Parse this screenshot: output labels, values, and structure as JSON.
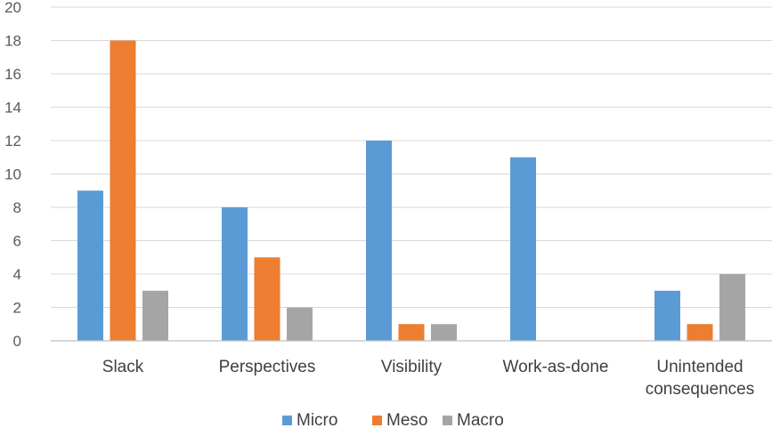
{
  "chart_data": {
    "type": "bar",
    "categories": [
      [
        "Slack"
      ],
      [
        "Perspectives"
      ],
      [
        "Visibility"
      ],
      [
        "Work-as-done"
      ],
      [
        "Unintended",
        "consequences"
      ]
    ],
    "series": [
      {
        "name": "Micro",
        "color": "#5b9bd5",
        "values": [
          9,
          8,
          12,
          11,
          3
        ]
      },
      {
        "name": "Meso",
        "color": "#ed7d31",
        "values": [
          18,
          5,
          1,
          0,
          1
        ]
      },
      {
        "name": "Macro",
        "color": "#a5a5a5",
        "values": [
          3,
          2,
          1,
          0,
          4
        ]
      }
    ],
    "ylim": [
      0,
      20
    ],
    "yticks": [
      0,
      2,
      4,
      6,
      8,
      10,
      12,
      14,
      16,
      18,
      20
    ],
    "grid": true,
    "legend": "bottom"
  }
}
